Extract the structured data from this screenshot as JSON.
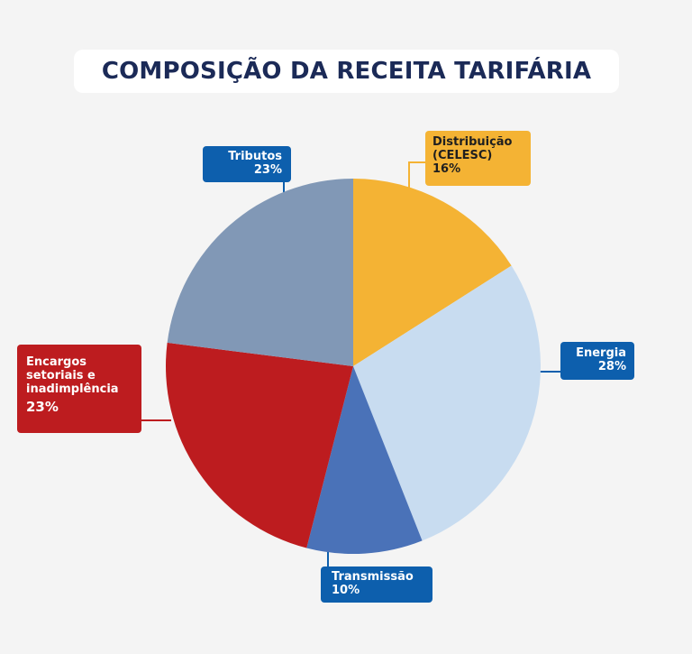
{
  "title": "COMPOSIÇÃO DA RECEITA TARIFÁRIA",
  "chart_data": {
    "type": "pie",
    "title": "COMPOSIÇÃO DA RECEITA TARIFÁRIA",
    "slices": [
      {
        "key": "distribuicao",
        "label": "Distribuição (CELESC)",
        "label_lines": [
          "Distribuição",
          "(CELESC)"
        ],
        "value": 16,
        "pct_text": "16%",
        "color": "#f4b334"
      },
      {
        "key": "energia",
        "label": "Energia",
        "label_lines": [
          "Energia"
        ],
        "value": 28,
        "pct_text": "28%",
        "color": "#c8dcf0"
      },
      {
        "key": "transmissao",
        "label": "Transmissão",
        "label_lines": [
          "Transmissão"
        ],
        "value": 10,
        "pct_text": "10%",
        "color": "#4a72b8"
      },
      {
        "key": "encargos",
        "label": "Encargos setoriais e inadimplência",
        "label_lines": [
          "Encargos",
          "setoriais e",
          "inadimplência"
        ],
        "value": 23,
        "pct_text": "23%",
        "color": "#bd1c1f"
      },
      {
        "key": "tributos",
        "label": "Tributos",
        "label_lines": [
          "Tributos"
        ],
        "value": 23,
        "pct_text": "23%",
        "color": "#8198b6"
      }
    ],
    "start": "12 o'clock",
    "direction": "clockwise",
    "legend": "none",
    "label_colors": {
      "blue": "#0d5fad",
      "yellow": "#f4b334",
      "red": "#bd1c1f"
    }
  }
}
